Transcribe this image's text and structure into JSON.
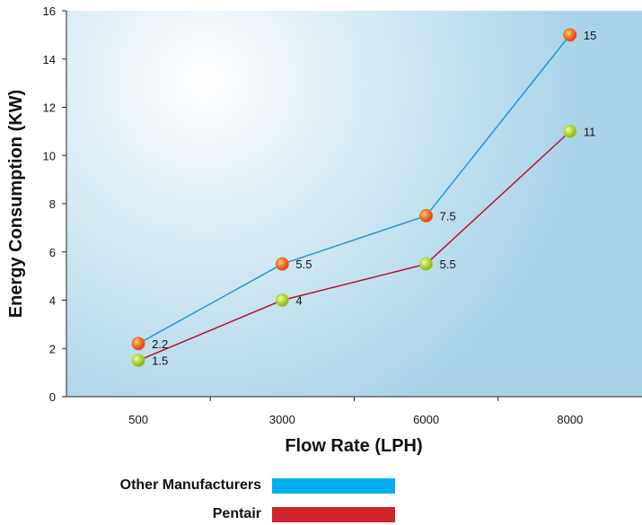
{
  "chart_data": {
    "type": "line",
    "title": "",
    "xlabel": "Flow Rate (LPH)",
    "ylabel": "Energy Consumption (KW)",
    "categories": [
      "500",
      "3000",
      "6000",
      "8000"
    ],
    "ylim": [
      0,
      16
    ],
    "yticks": [
      "0",
      "2",
      "4",
      "6",
      "8",
      "10",
      "12",
      "14",
      "16"
    ],
    "grid": false,
    "legend_position": "bottom",
    "series": [
      {
        "name": "Other Manufacturers",
        "values": [
          2.2,
          5.5,
          7.5,
          15
        ],
        "labels": [
          "2.2",
          "5.5",
          "7.5",
          "15"
        ],
        "line_color": "#1a9ad6",
        "marker_color": "#f05a1e",
        "legend_color": "#00aeef"
      },
      {
        "name": "Pentair",
        "values": [
          1.5,
          4,
          5.5,
          11
        ],
        "labels": [
          "1.5",
          "4",
          "5.5",
          "11"
        ],
        "line_color": "#b5122b",
        "marker_color": "#a6d13a",
        "legend_color": "#d1232a"
      }
    ]
  }
}
